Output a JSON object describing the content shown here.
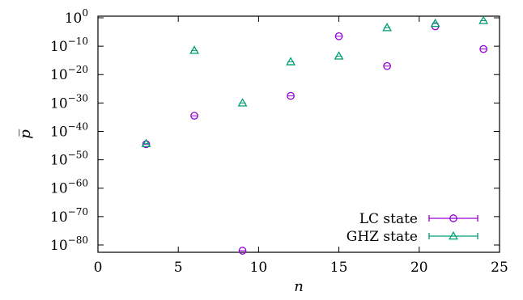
{
  "chart_data": {
    "type": "scatter",
    "xlabel": "n",
    "ylabel": "p̅",
    "xlim": [
      0,
      25
    ],
    "ylim": [
      -82,
      0
    ],
    "yscale": "log",
    "x_ticks": [
      0,
      5,
      10,
      15,
      20,
      25
    ],
    "x_tick_labels": [
      "0",
      "5",
      "10",
      "15",
      "20",
      "25"
    ],
    "y_ticks": [
      0,
      -10,
      -20,
      -30,
      -40,
      -50,
      -60,
      -70,
      -80
    ],
    "y_tick_labels": [
      {
        "base": "10",
        "exp": "0"
      },
      {
        "base": "10",
        "exp": "−10"
      },
      {
        "base": "10",
        "exp": "−20"
      },
      {
        "base": "10",
        "exp": "−30"
      },
      {
        "base": "10",
        "exp": "−40"
      },
      {
        "base": "10",
        "exp": "−50"
      },
      {
        "base": "10",
        "exp": "−60"
      },
      {
        "base": "10",
        "exp": "−70"
      },
      {
        "base": "10",
        "exp": "−80"
      }
    ],
    "legend_position": "bottom-right",
    "grid": false,
    "series": [
      {
        "name": "LC state",
        "marker": "circle",
        "color": "#9400d3",
        "x": [
          3,
          6,
          9,
          12,
          15,
          18,
          21,
          24
        ],
        "log10_y": [
          -44.5,
          -34.5,
          -82,
          -27.5,
          -6.5,
          -17,
          -3,
          -11
        ]
      },
      {
        "name": "GHZ state",
        "marker": "triangle",
        "color": "#009e73",
        "x": [
          3,
          6,
          9,
          12,
          15,
          18,
          21,
          24
        ],
        "log10_y": [
          -44.3,
          -11.5,
          -30,
          -15.5,
          -13.5,
          -3.5,
          -2,
          -1
        ]
      }
    ]
  }
}
